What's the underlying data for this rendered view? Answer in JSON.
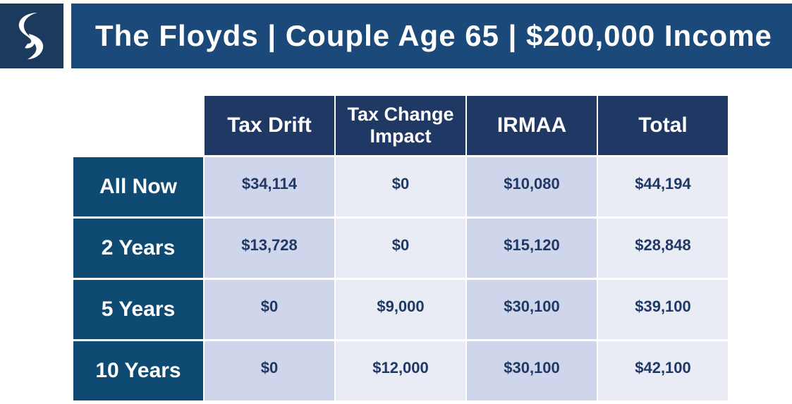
{
  "header": {
    "title": "The Floyds | Couple Age 65 | $200,000 Income",
    "logo_icon": "stylized-s-logo-icon"
  },
  "colors": {
    "title_bar": "#1b4a7a",
    "logo_box": "#1b3a5e",
    "column_header": "#1f3864",
    "row_header": "#0f4a73",
    "cell_dark": "#cfd5ea",
    "cell_light": "#e9ebf5"
  },
  "table": {
    "columns": [
      "Tax Drift",
      "Tax Change Impact",
      "IRMAA",
      "Total"
    ],
    "rows": [
      {
        "label": "All Now",
        "values": [
          "$34,114",
          "$0",
          "$10,080",
          "$44,194"
        ]
      },
      {
        "label": "2 Years",
        "values": [
          "$13,728",
          "$0",
          "$15,120",
          "$28,848"
        ]
      },
      {
        "label": "5 Years",
        "values": [
          "$0",
          "$9,000",
          "$30,100",
          "$39,100"
        ]
      },
      {
        "label": "10 Years",
        "values": [
          "$0",
          "$12,000",
          "$30,100",
          "$42,100"
        ]
      }
    ]
  }
}
